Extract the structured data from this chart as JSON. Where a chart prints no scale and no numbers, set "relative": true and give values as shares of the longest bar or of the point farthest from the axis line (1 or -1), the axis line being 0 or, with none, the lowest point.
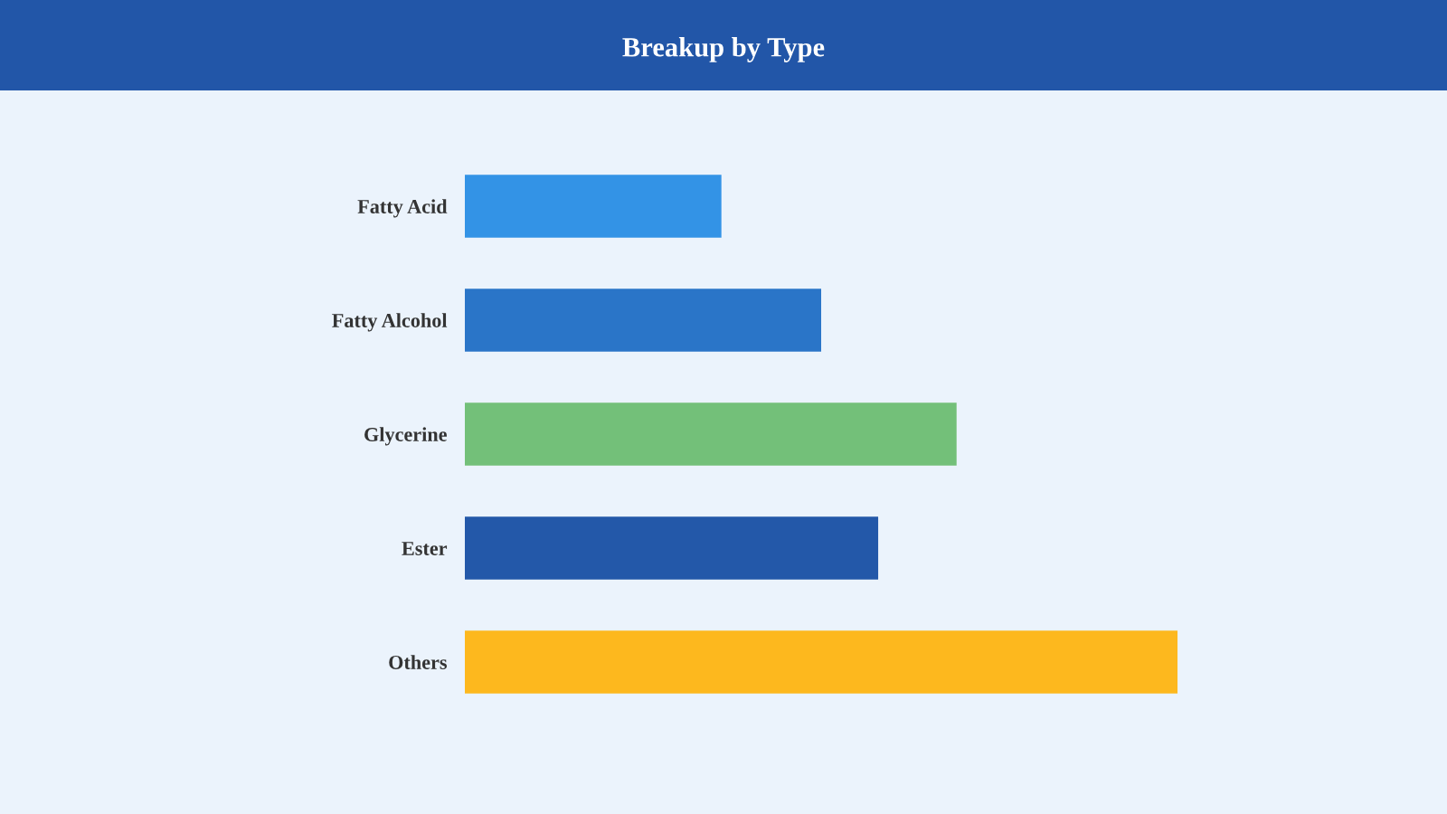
{
  "chart_data": {
    "type": "bar",
    "title": "Breakup by Type",
    "orientation": "horizontal",
    "relative": true,
    "categories": [
      "Fatty Acid",
      "Fatty Alcohol",
      "Glycerine",
      "Ester",
      "Others"
    ],
    "values": [
      0.36,
      0.5,
      0.69,
      0.58,
      1
    ],
    "colors": [
      "#3393e6",
      "#2a75c8",
      "#73c079",
      "#2358a9",
      "#fdb81e"
    ]
  }
}
